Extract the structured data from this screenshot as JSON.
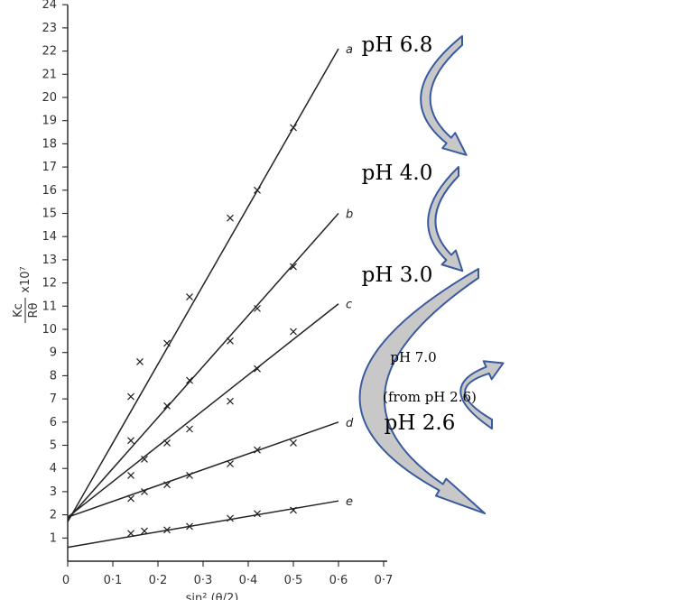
{
  "chart_data": {
    "type": "scatter",
    "xlabel": "sin² (θ/2)",
    "ylabel_top": "Kc",
    "ylabel_suffix": "x10⁷",
    "ylabel_bottom": "Rθ",
    "xlim": [
      0,
      0.7
    ],
    "ylim": [
      0,
      24
    ],
    "x_ticks": [
      "0",
      "0·1",
      "0·2",
      "0·3",
      "0·4",
      "0·5",
      "0·6",
      "0·7"
    ],
    "y_ticks": [
      "1",
      "2",
      "3",
      "4",
      "5",
      "6",
      "7",
      "8",
      "9",
      "10",
      "11",
      "12",
      "13",
      "14",
      "15",
      "16",
      "17",
      "18",
      "19",
      "20",
      "21",
      "22",
      "23",
      "24"
    ],
    "grid": false,
    "series": [
      {
        "name": "a",
        "line": [
          [
            0,
            1.7
          ],
          [
            0.6,
            22.1
          ]
        ],
        "points": [
          [
            0.14,
            7.1
          ],
          [
            0.16,
            8.6
          ],
          [
            0.22,
            9.4
          ],
          [
            0.27,
            11.4
          ],
          [
            0.36,
            14.8
          ],
          [
            0.42,
            16.0
          ],
          [
            0.5,
            18.7
          ]
        ]
      },
      {
        "name": "b",
        "line": [
          [
            0,
            1.8
          ],
          [
            0.6,
            15.0
          ]
        ],
        "points": [
          [
            0.14,
            5.2
          ],
          [
            0.22,
            6.7
          ],
          [
            0.27,
            7.8
          ],
          [
            0.36,
            9.5
          ],
          [
            0.42,
            10.9
          ],
          [
            0.5,
            12.7
          ]
        ]
      },
      {
        "name": "c",
        "line": [
          [
            0,
            1.9
          ],
          [
            0.6,
            11.1
          ]
        ],
        "points": [
          [
            0.14,
            3.7
          ],
          [
            0.17,
            4.4
          ],
          [
            0.22,
            5.1
          ],
          [
            0.27,
            5.7
          ],
          [
            0.36,
            6.9
          ],
          [
            0.42,
            8.3
          ],
          [
            0.5,
            9.9
          ]
        ]
      },
      {
        "name": "d",
        "line": [
          [
            0,
            1.9
          ],
          [
            0.6,
            6.0
          ]
        ],
        "points": [
          [
            0.14,
            2.7
          ],
          [
            0.17,
            3.0
          ],
          [
            0.22,
            3.3
          ],
          [
            0.27,
            3.7
          ],
          [
            0.36,
            4.2
          ],
          [
            0.42,
            4.8
          ],
          [
            0.5,
            5.1
          ]
        ]
      },
      {
        "name": "e",
        "line": [
          [
            0,
            0.6
          ],
          [
            0.6,
            2.6
          ]
        ],
        "points": [
          [
            0.14,
            1.2
          ],
          [
            0.17,
            1.3
          ],
          [
            0.22,
            1.35
          ],
          [
            0.27,
            1.5
          ],
          [
            0.36,
            1.85
          ],
          [
            0.42,
            2.05
          ],
          [
            0.5,
            2.2
          ]
        ]
      }
    ],
    "annotations": [
      {
        "text": "pH 6.8"
      },
      {
        "text": "pH 4.0"
      },
      {
        "text": "pH 3.0"
      },
      {
        "text": "pH 7.0"
      },
      {
        "text": "(from pH 2.6)"
      },
      {
        "text": "pH 2.6"
      }
    ],
    "colors": {
      "arrow_fill": "#c8c8c8",
      "arrow_stroke": "#3a5aa0",
      "ink": "#222222"
    }
  }
}
